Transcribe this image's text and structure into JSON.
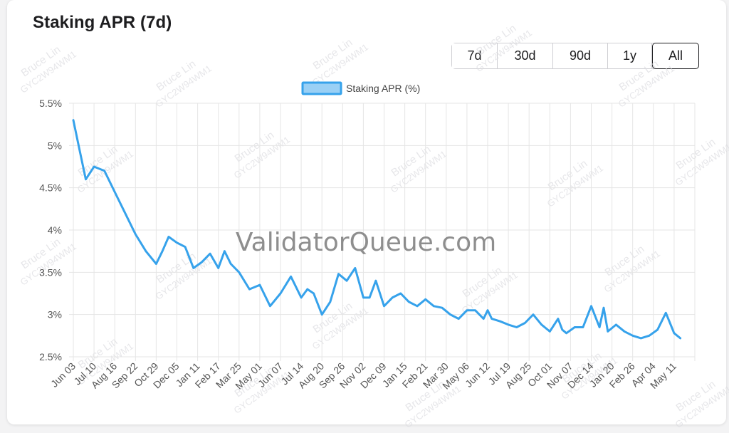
{
  "header": {
    "title": "Staking APR (7d)"
  },
  "range_selector": {
    "buttons": [
      {
        "key": "7d",
        "label": "7d"
      },
      {
        "key": "30d",
        "label": "30d"
      },
      {
        "key": "90d",
        "label": "90d"
      },
      {
        "key": "1y",
        "label": "1y"
      },
      {
        "key": "all",
        "label": "All"
      }
    ],
    "active": "all"
  },
  "watermark": {
    "site": "ValidatorQueue.com",
    "tag_name": "Bruce Lin",
    "tag_code": "GYC2W94WM1"
  },
  "colors": {
    "series_line": "#36a2eb",
    "series_fill": "#9ad0f5",
    "grid": "#e5e5e5",
    "text": "#666666"
  },
  "chart_data": {
    "type": "line",
    "title": "",
    "xlabel": "",
    "ylabel": "",
    "ylim": [
      2.5,
      5.5
    ],
    "yticks": [
      {
        "value": 2.5,
        "label": "2.5%"
      },
      {
        "value": 3.0,
        "label": "3%"
      },
      {
        "value": 3.5,
        "label": "3.5%"
      },
      {
        "value": 4.0,
        "label": "4%"
      },
      {
        "value": 4.5,
        "label": "4.5%"
      },
      {
        "value": 5.0,
        "label": "5%"
      },
      {
        "value": 5.5,
        "label": "5.5%"
      }
    ],
    "categories": [
      "Jun 03",
      "Jul 10",
      "Aug 16",
      "Sep 22",
      "Oct 29",
      "Dec 05",
      "Jan 11",
      "Feb 17",
      "Mar 25",
      "May 01",
      "Jun 07",
      "Jul 14",
      "Aug 20",
      "Sep 26",
      "Nov 02",
      "Dec 09",
      "Jan 15",
      "Feb 21",
      "Mar 30",
      "May 06",
      "Jun 12",
      "Jul 19",
      "Aug 25",
      "Oct 01",
      "Nov 07",
      "Dec 14",
      "Jan 20",
      "Feb 26",
      "Apr 04",
      "May 11"
    ],
    "legend": {
      "position": "top-center"
    },
    "grid": true,
    "series": [
      {
        "name": "Staking APR (%)",
        "x": [
          0,
          0.3,
          0.6,
          1.0,
          1.5,
          2.0,
          2.5,
          3.0,
          3.5,
          4.0,
          4.3,
          4.6,
          5.0,
          5.4,
          5.8,
          6.2,
          6.6,
          7.0,
          7.3,
          7.6,
          8.0,
          8.5,
          9.0,
          9.5,
          10.0,
          10.5,
          11.0,
          11.3,
          11.6,
          12.0,
          12.4,
          12.8,
          13.2,
          13.6,
          14.0,
          14.3,
          14.6,
          15.0,
          15.4,
          15.8,
          16.2,
          16.6,
          17.0,
          17.4,
          17.8,
          18.2,
          18.6,
          19.0,
          19.4,
          19.8,
          20.0,
          20.2,
          20.6,
          21.0,
          21.4,
          21.8,
          22.2,
          22.6,
          23.0,
          23.4,
          23.6,
          23.8,
          24.2,
          24.6,
          25.0,
          25.4,
          25.6,
          25.8,
          26.2,
          26.6,
          27.0,
          27.4,
          27.8,
          28.2,
          28.6,
          29.0,
          29.3
        ],
        "values": [
          5.3,
          4.95,
          4.6,
          4.75,
          4.7,
          4.45,
          4.2,
          3.95,
          3.75,
          3.6,
          3.75,
          3.92,
          3.85,
          3.8,
          3.55,
          3.62,
          3.72,
          3.55,
          3.75,
          3.6,
          3.5,
          3.3,
          3.35,
          3.1,
          3.25,
          3.45,
          3.2,
          3.3,
          3.25,
          3.0,
          3.15,
          3.48,
          3.4,
          3.55,
          3.2,
          3.2,
          3.4,
          3.1,
          3.2,
          3.25,
          3.15,
          3.1,
          3.18,
          3.1,
          3.08,
          3.0,
          2.95,
          3.05,
          3.05,
          2.95,
          3.05,
          2.95,
          2.92,
          2.88,
          2.85,
          2.9,
          3.0,
          2.88,
          2.8,
          2.95,
          2.82,
          2.78,
          2.85,
          2.85,
          3.1,
          2.85,
          3.08,
          2.8,
          2.88,
          2.8,
          2.75,
          2.72,
          2.75,
          2.82,
          3.02,
          2.78,
          2.72
        ]
      }
    ]
  }
}
